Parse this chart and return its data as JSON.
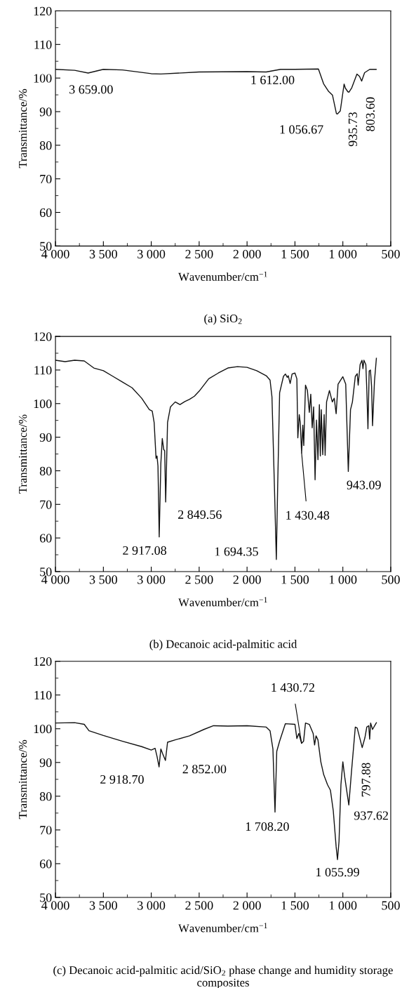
{
  "chart_data": [
    {
      "type": "line",
      "title": "(a) SiO$_{2}$",
      "xlabel": "Wavenumber/cm$^{−1}$",
      "ylabel": "Transmittance/%",
      "xlim": [
        4000,
        500
      ],
      "xticks": [
        {
          "value": 4000,
          "label": "4 000"
        },
        {
          "value": 3500,
          "label": "3 500"
        },
        {
          "value": 3000,
          "label": "3 000"
        },
        {
          "value": 2500,
          "label": "2 500"
        },
        {
          "value": 2000,
          "label": "2 000"
        },
        {
          "value": 1500,
          "label": "1 500"
        },
        {
          "value": 1000,
          "label": "1 000"
        },
        500
      ],
      "ylim": [
        50,
        120
      ],
      "yticks": [
        50,
        60,
        70,
        80,
        90,
        100,
        110,
        120
      ],
      "x": [
        4000,
        3800,
        3659,
        3500,
        3300,
        3000,
        2900,
        2500,
        2000,
        1800,
        1650,
        1500,
        1255,
        1201,
        1148,
        1108,
        1067,
        1056.67,
        1027,
        987,
        974,
        947,
        935.73,
        907,
        853,
        826,
        803.6,
        773,
        719,
        652
      ],
      "series": [
        {
          "color": "#111111",
          "values": [
            102.6,
            102.3,
            101.5,
            102.6,
            102.4,
            101.3,
            101.2,
            101.8,
            101.9,
            101.8,
            102.6,
            102.6,
            102.7,
            98.3,
            96,
            94.9,
            89.4,
            89.3,
            90.2,
            98.2,
            97,
            95.9,
            95.8,
            97.1,
            101.2,
            100.5,
            99.1,
            101.6,
            102.6,
            102.6
          ]
        }
      ],
      "annotations": [
        {
          "text": "3 659.00",
          "x": 3659,
          "y": 101.5
        },
        {
          "text": "1 612.00",
          "x": 1612,
          "y": 102.3
        },
        {
          "text": "1 056.67",
          "x": 1056.67,
          "y": 89.3
        },
        {
          "text": "935.73",
          "x": 935.73,
          "y": 95.8
        },
        {
          "text": "803.60",
          "x": 803.6,
          "y": 99.1
        }
      ]
    },
    {
      "type": "line",
      "title": "(b) Decanoic acid-palmitic acid",
      "xlabel": "Wavenumber/cm$^{−1}$",
      "ylabel": "Transmittance/%",
      "xlim": [
        4000,
        500
      ],
      "xticks": [
        {
          "value": 4000,
          "label": "4 000"
        },
        {
          "value": 3500,
          "label": "3 500"
        },
        {
          "value": 3000,
          "label": "3 000"
        },
        {
          "value": 2500,
          "label": "2 500"
        },
        {
          "value": 2000,
          "label": "2 000"
        },
        {
          "value": 1500,
          "label": "1 500"
        },
        {
          "value": 1000,
          "label": "1 000"
        },
        500
      ],
      "ylim": [
        50,
        120
      ],
      "yticks": [
        50,
        60,
        70,
        80,
        90,
        100,
        110,
        120
      ],
      "x": [
        4000,
        3900,
        3800,
        3700,
        3600,
        3500,
        3400,
        3300,
        3200,
        3100,
        3020,
        2990,
        2970,
        2950,
        2940,
        2930,
        2917.08,
        2900,
        2885,
        2870,
        2860,
        2849.56,
        2830,
        2800,
        2750,
        2700,
        2650,
        2600,
        2550,
        2500,
        2400,
        2300,
        2200,
        2100,
        2000,
        1900,
        1800,
        1760,
        1740,
        1715,
        1694.35,
        1680,
        1660,
        1620,
        1600,
        1580,
        1570,
        1550,
        1530,
        1500,
        1480,
        1470,
        1455,
        1445,
        1430.48,
        1418,
        1408,
        1390,
        1370,
        1350,
        1335,
        1320,
        1305,
        1290,
        1275,
        1260,
        1245,
        1235,
        1225,
        1210,
        1195,
        1185,
        1170,
        1140,
        1110,
        1090,
        1070,
        1050,
        1000,
        970,
        943.09,
        920,
        900,
        870,
        850,
        840,
        820,
        800,
        790,
        780,
        760,
        750,
        738,
        725,
        712,
        700,
        690,
        670,
        650
      ],
      "series": [
        {
          "color": "#111111",
          "values": [
            112.9,
            112.5,
            112.9,
            112.7,
            110.6,
            109.8,
            108.1,
            106.4,
            104.7,
            101.6,
            98.2,
            97.8,
            94.4,
            83.7,
            84.4,
            81.4,
            60.3,
            82.2,
            89.6,
            86.3,
            86,
            70.7,
            94.4,
            99,
            100.5,
            99.7,
            100.6,
            101.3,
            102.2,
            103.7,
            107.4,
            109.1,
            110.6,
            111,
            110.8,
            109.8,
            108.3,
            107,
            102,
            76,
            53.6,
            76,
            103.2,
            108.1,
            108.8,
            107.8,
            108.3,
            106,
            108.8,
            109.1,
            107.4,
            89.8,
            96.7,
            94.4,
            85.3,
            93.6,
            87.5,
            105.5,
            103.9,
            97.4,
            102.8,
            92.8,
            99,
            77.3,
            95.1,
            83.3,
            99.7,
            84.4,
            98.2,
            84.8,
            96.7,
            84.6,
            100.5,
            103.9,
            100.5,
            101.6,
            97,
            105.8,
            108,
            105.8,
            79.8,
            98.2,
            100.5,
            108.1,
            108.9,
            105.5,
            111.6,
            112.9,
            110.4,
            112.9,
            111.6,
            104.2,
            92.5,
            109.7,
            110,
            105.1,
            93.4,
            106.6,
            113.5
          ]
        }
      ],
      "annotations": [
        {
          "text": "2 917.08",
          "x": 2917.08,
          "y": 60.3
        },
        {
          "text": "2 849.56",
          "x": 2849.56,
          "y": 70.7
        },
        {
          "text": "1 694.35",
          "x": 1694.35,
          "y": 53.6
        },
        {
          "text": "1 430.48",
          "x": 1430.48,
          "y": 85.3
        },
        {
          "text": "943.09",
          "x": 943.09,
          "y": 79.8
        }
      ]
    },
    {
      "type": "line",
      "title": "(c) Decanoic acid-palmitic acid/SiO$_{2}$ phase change and humidity storage composites",
      "xlabel": "Wavenumber/cm$^{−1}$",
      "ylabel": "Transmittance/%",
      "xlim": [
        4000,
        500
      ],
      "xticks": [
        {
          "value": 4000,
          "label": "4 000"
        },
        {
          "value": 3500,
          "label": "3 500"
        },
        {
          "value": 3000,
          "label": "3 000"
        },
        {
          "value": 2500,
          "label": "2 500"
        },
        {
          "value": 2000,
          "label": "2 000"
        },
        {
          "value": 1500,
          "label": "1 500"
        },
        {
          "value": 1000,
          "label": "1 000"
        },
        500
      ],
      "ylim": [
        50,
        120
      ],
      "yticks": [
        50,
        60,
        70,
        80,
        90,
        100,
        110,
        120
      ],
      "x": [
        4000,
        3800,
        3700,
        3650,
        3500,
        3300,
        3100,
        3000,
        2960,
        2940,
        2918.7,
        2900,
        2880,
        2852,
        2830,
        2750,
        2600,
        2450,
        2350,
        2200,
        2000,
        1800,
        1760,
        1730,
        1708.2,
        1690,
        1660,
        1600,
        1500,
        1480,
        1460,
        1430.72,
        1410,
        1390,
        1350,
        1310,
        1295,
        1280,
        1260,
        1230,
        1200,
        1160,
        1130,
        1100,
        1070,
        1055.99,
        1040,
        1020,
        1000,
        980,
        937.62,
        910,
        870,
        850,
        797.88,
        770,
        750,
        730,
        720,
        710,
        690,
        650
      ],
      "series": [
        {
          "color": "#111111",
          "values": [
            101.7,
            101.8,
            101.3,
            99.4,
            98,
            96.3,
            94.7,
            93.7,
            94.2,
            91.8,
            88.7,
            94,
            92.5,
            90.6,
            96,
            96.7,
            97.9,
            99.8,
            100.9,
            100.8,
            100.9,
            100.5,
            99.4,
            94,
            75.3,
            93.3,
            96.3,
            101.5,
            101.3,
            97.1,
            98.6,
            95.7,
            96.3,
            101.7,
            101.3,
            98.6,
            95.2,
            97.9,
            96.7,
            90.2,
            86.4,
            83.4,
            81.8,
            75.7,
            65,
            61.2,
            66.6,
            83.4,
            90.2,
            85.6,
            77.4,
            87.2,
            100.5,
            100.2,
            94.4,
            97.3,
            100.5,
            100.9,
            96.9,
            101.7,
            99.8,
            101.8
          ]
        }
      ],
      "annotations": [
        {
          "text": "2 918.70",
          "x": 2918.7,
          "y": 88.7
        },
        {
          "text": "2 852.00",
          "x": 2852,
          "y": 90.6
        },
        {
          "text": "1 708.20",
          "x": 1708.2,
          "y": 75.3
        },
        {
          "text": "1 430.72",
          "x": 1430.72,
          "y": 95.7
        },
        {
          "text": "1 055.99",
          "x": 1055.99,
          "y": 61.2
        },
        {
          "text": "937.62",
          "x": 937.62,
          "y": 77.4
        },
        {
          "text": "797.88",
          "x": 797.88,
          "y": 94.4
        }
      ]
    }
  ]
}
